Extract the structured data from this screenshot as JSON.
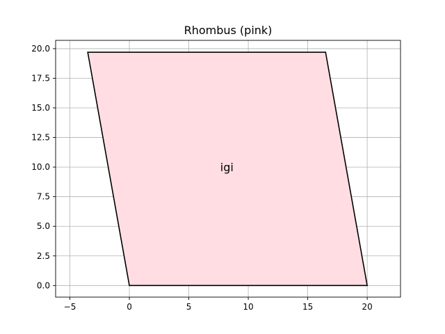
{
  "chart_data": {
    "type": "area",
    "title": "Rhombus (pink)",
    "xlabel": "",
    "ylabel": "",
    "xlim": [
      -6.2,
      22.8
    ],
    "ylim": [
      -0.98,
      20.7
    ],
    "xticks": [
      -5,
      0,
      5,
      10,
      15,
      20
    ],
    "xtick_labels": [
      "−5",
      "0",
      "5",
      "10",
      "15",
      "20"
    ],
    "yticks": [
      0,
      2.5,
      5,
      7.5,
      10,
      12.5,
      15,
      17.5,
      20
    ],
    "ytick_labels": [
      "0.0",
      "2.5",
      "5.0",
      "7.5",
      "10.0",
      "12.5",
      "15.0",
      "17.5",
      "20.0"
    ],
    "grid": true,
    "shape": {
      "name": "Rhombus",
      "fill_color": "#ffdde3",
      "edge_color": "#000000",
      "vertices": [
        {
          "x": 0,
          "y": 0
        },
        {
          "x": 20,
          "y": 0
        },
        {
          "x": 16.5,
          "y": 19.7
        },
        {
          "x": -3.5,
          "y": 19.7
        }
      ]
    },
    "annotations": [
      {
        "text": "igi",
        "x": 8.2,
        "y": 10.0
      }
    ]
  }
}
